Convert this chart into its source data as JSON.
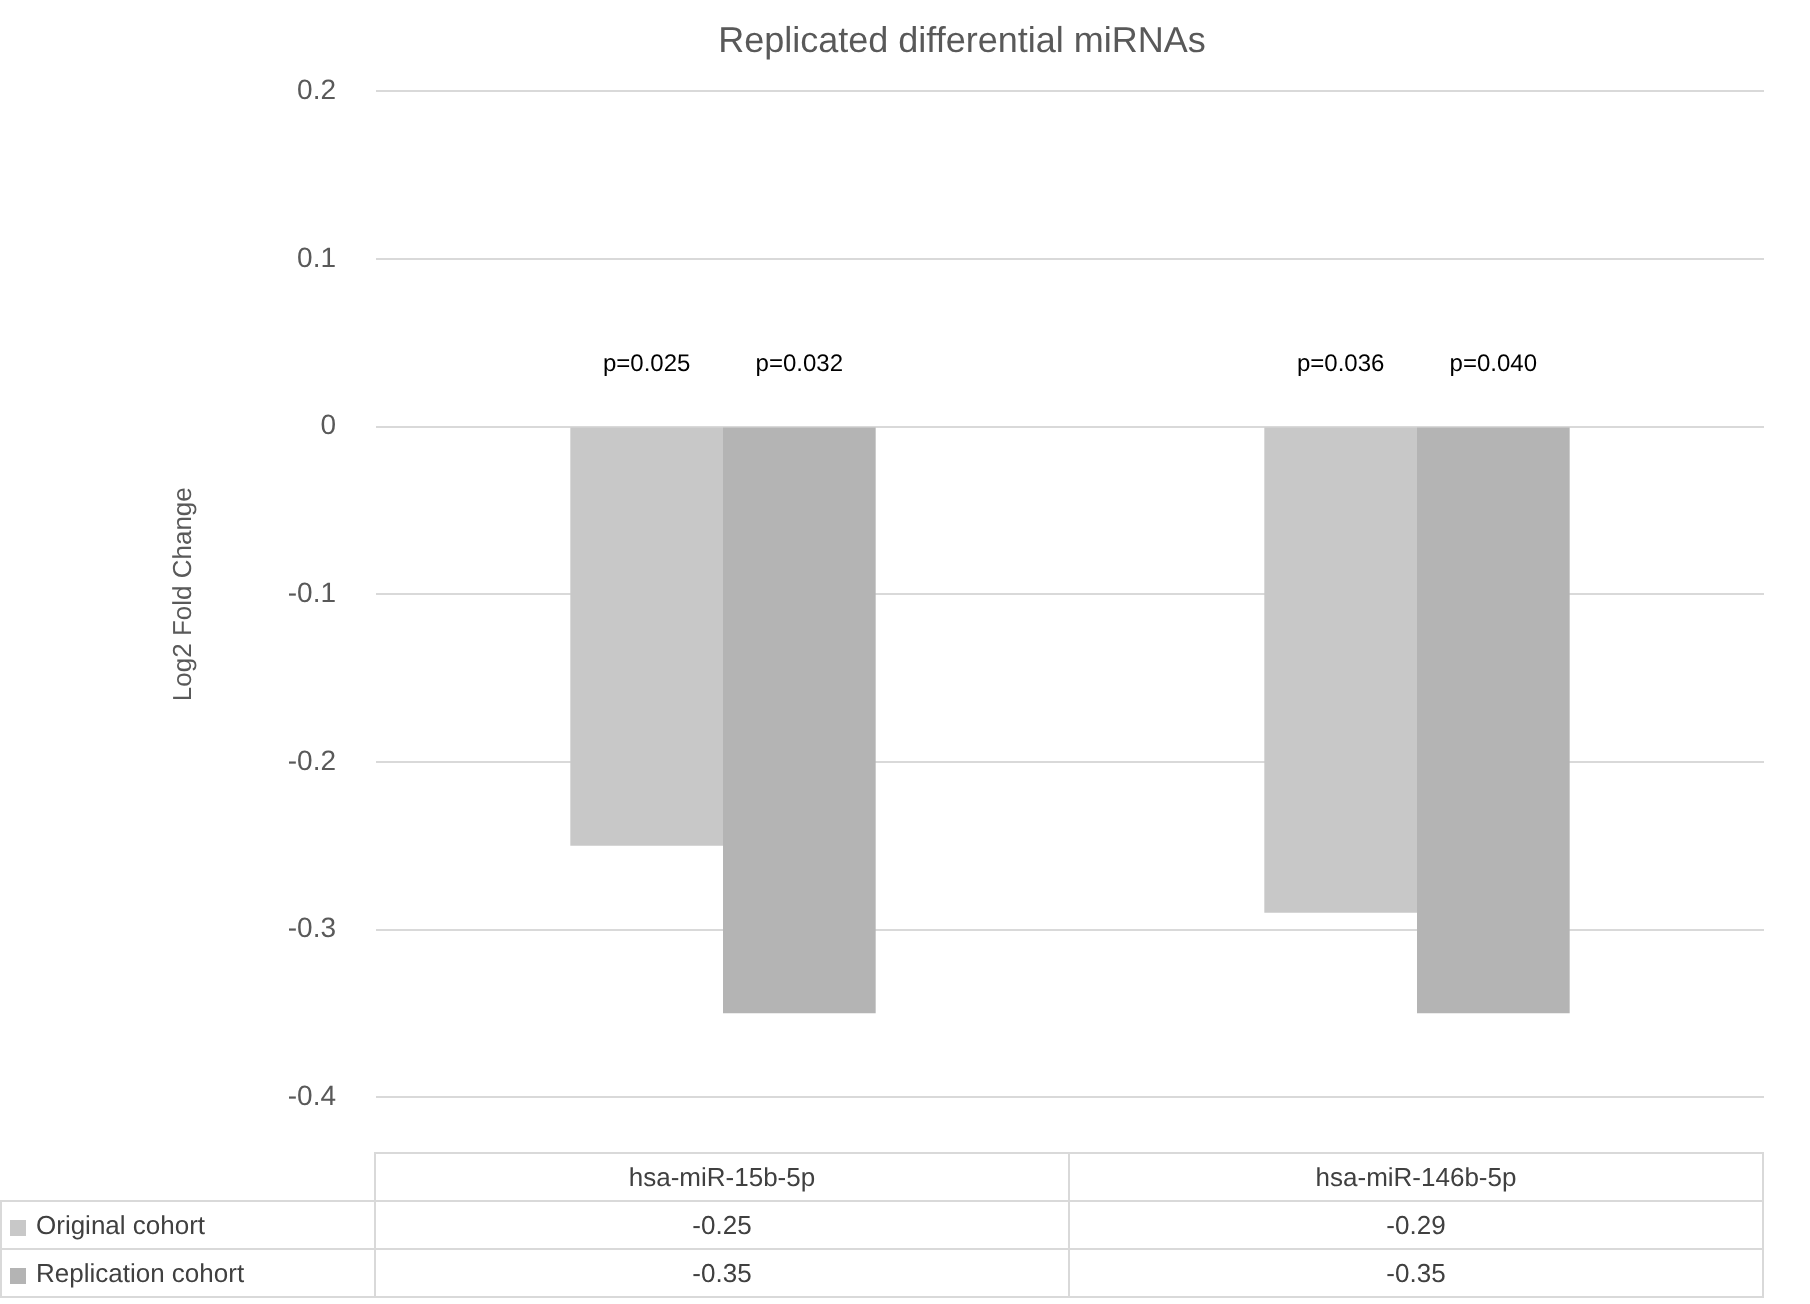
{
  "chart_data": {
    "type": "bar",
    "title": "Replicated differential miRNAs",
    "ylabel": "Log2 Fold Change",
    "categories": [
      "hsa-miR-15b-5p",
      "hsa-miR-146b-5p"
    ],
    "series": [
      {
        "name": "Original cohort",
        "color": "#c8c8c8",
        "values": [
          -0.25,
          -0.29
        ]
      },
      {
        "name": "Replication cohort",
        "color": "#b4b4b4",
        "values": [
          -0.35,
          -0.35
        ]
      }
    ],
    "ylim": [
      -0.4,
      0.2
    ],
    "yticks": [
      -0.4,
      -0.3,
      -0.2,
      -0.1,
      0,
      0.1,
      0.2
    ],
    "grid": "y",
    "legend": "bottom",
    "data_labels": true,
    "annotations": [
      {
        "text": "p=0.025",
        "x": "hsa-miR-15b-5p",
        "y": 0
      },
      {
        "text": "p=0.032",
        "x": "hsa-miR-15b-5p",
        "y": 0
      },
      {
        "text": "p=0.036",
        "x": "hsa-miR-146b-5p",
        "y": 0
      },
      {
        "text": "p=0.040",
        "x": "hsa-miR-146b-5p",
        "y": 0
      }
    ]
  }
}
